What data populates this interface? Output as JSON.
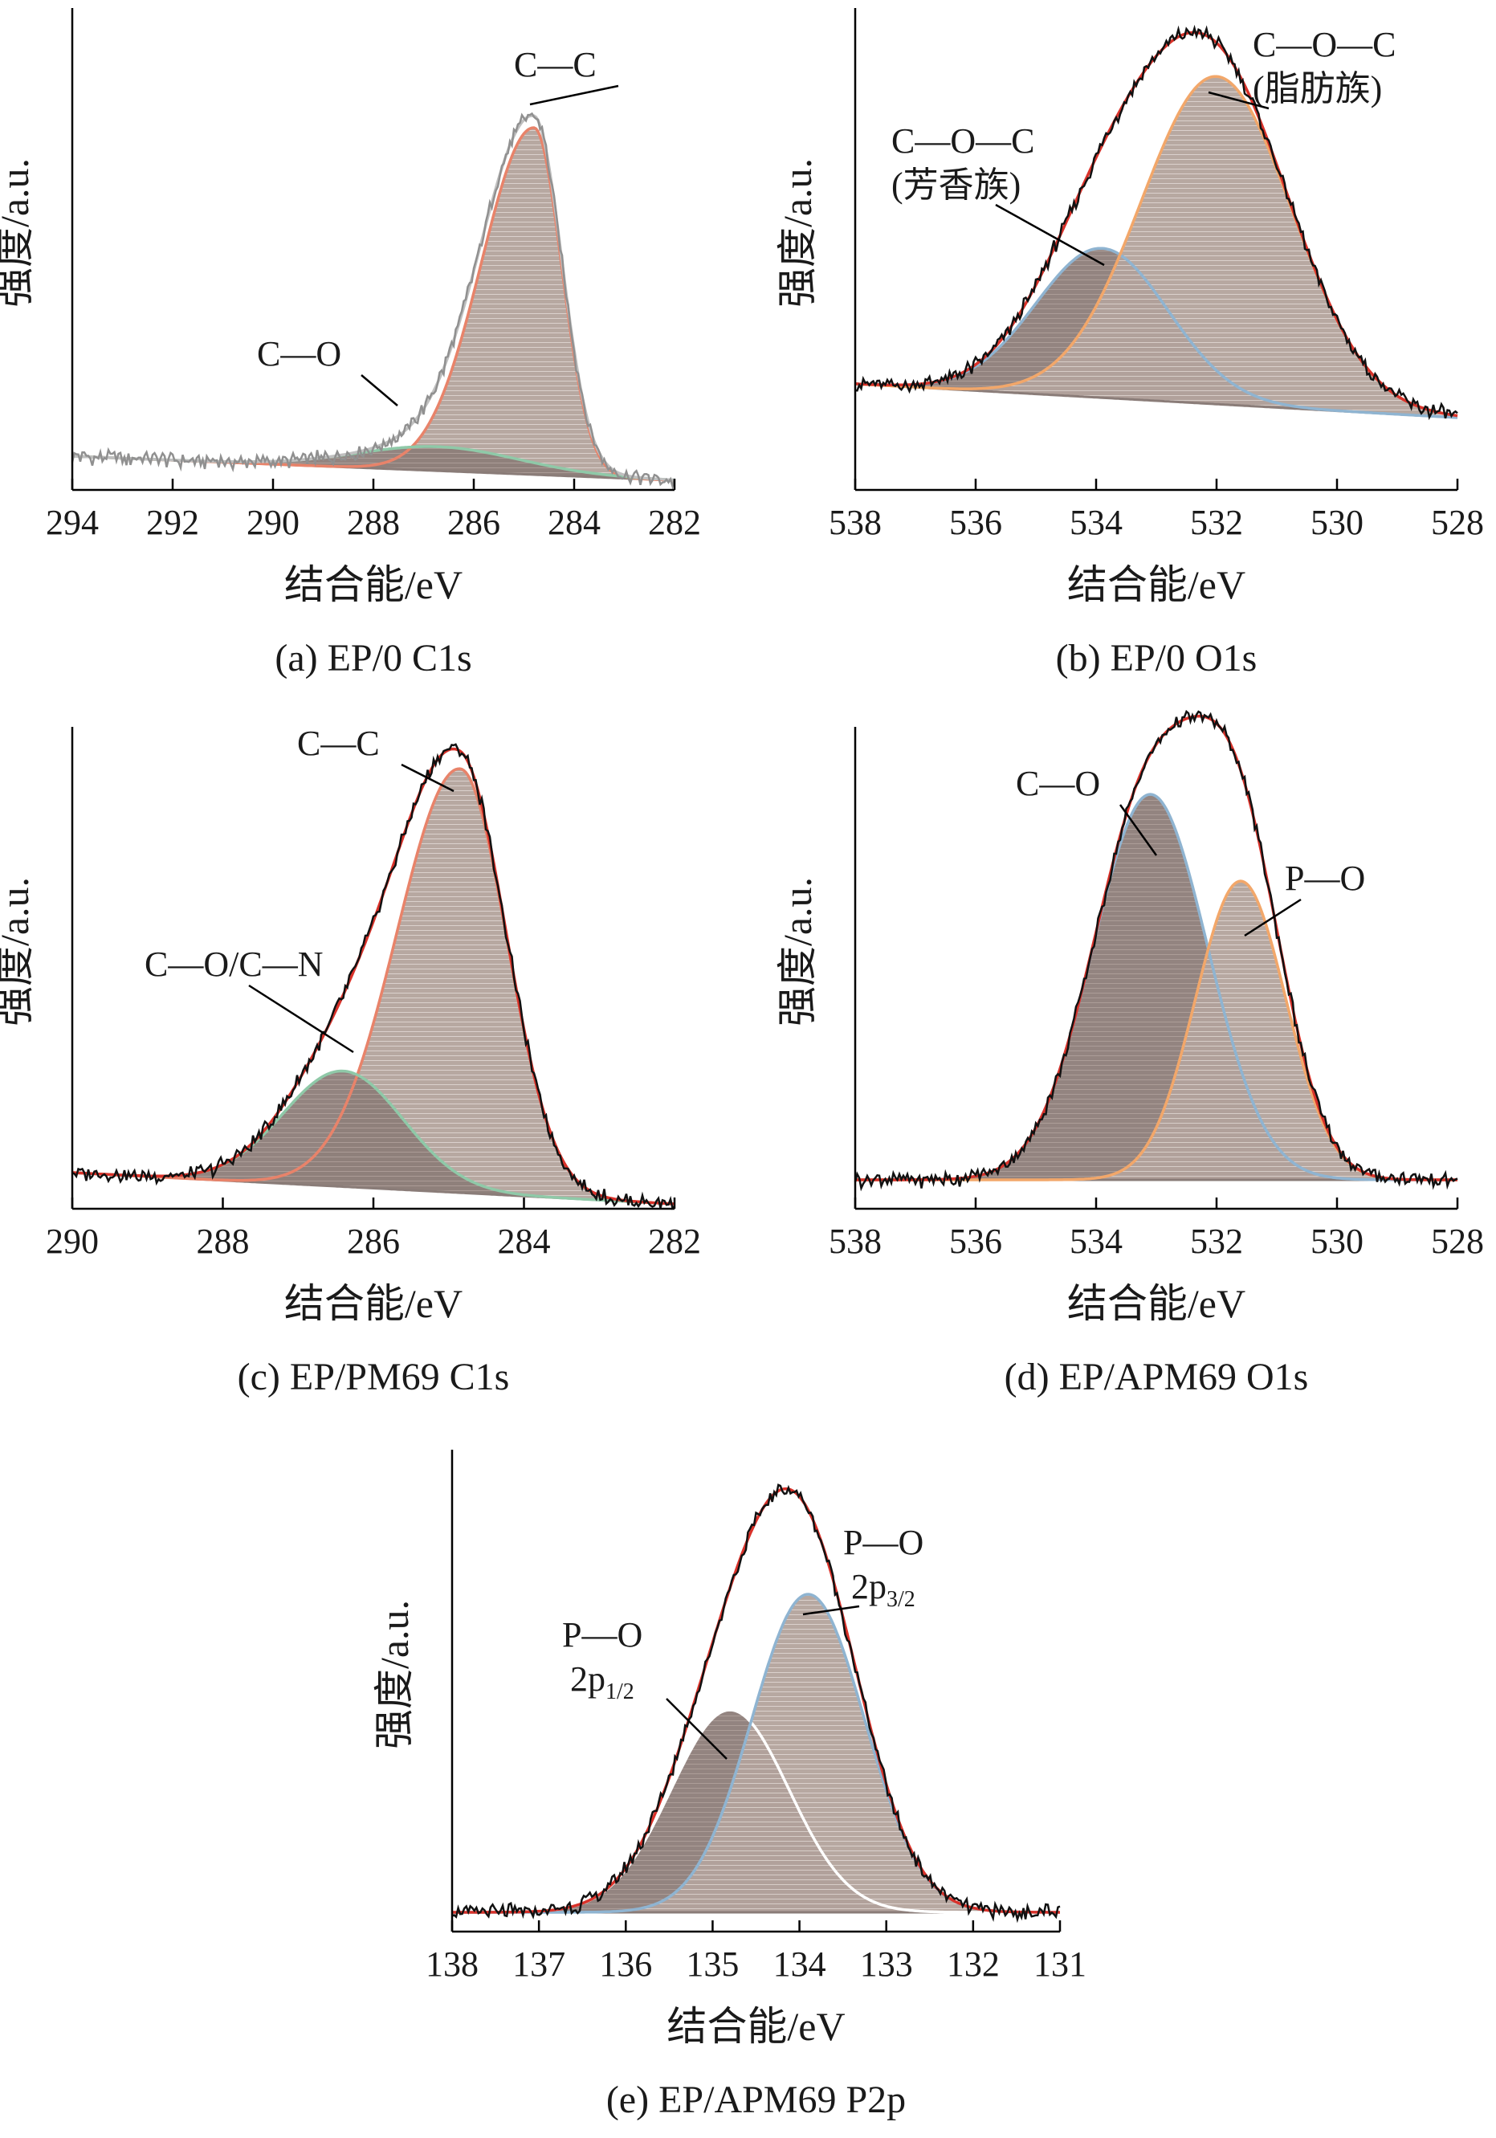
{
  "chart_data": [
    {
      "id": "a",
      "type": "area",
      "caption": "(a) EP/0 C1s",
      "xlabel": "结合能/eV",
      "ylabel": "强度/a.u.",
      "xlim": [
        294,
        282
      ],
      "xticks": [
        294,
        292,
        290,
        288,
        286,
        284,
        282
      ],
      "ylim": [
        0,
        1
      ],
      "baseline": [
        0.07,
        0.02
      ],
      "peaks": [
        {
          "center": 284.8,
          "height": 0.72,
          "width": 0.55,
          "color": "#e8836a"
        },
        {
          "center": 286.7,
          "height": 0.05,
          "width": 1.6,
          "color": "#8fc9a8"
        }
      ],
      "measured_color": "#909090",
      "envelope_color": "#c0c0c0",
      "annotations": [
        {
          "label": "C—C",
          "x": 284.85,
          "y": 0.78
        },
        {
          "label": "C—O",
          "x": 287.3,
          "y": 0.11
        }
      ]
    },
    {
      "id": "b",
      "type": "area",
      "caption": "(b) EP/0 O1s",
      "xlabel": "结合能/eV",
      "ylabel": "强度/a.u.",
      "xlim": [
        538,
        528
      ],
      "xticks": [
        538,
        536,
        534,
        532,
        530,
        528
      ],
      "ylim": [
        0,
        1
      ],
      "baseline": [
        0.22,
        0.15
      ],
      "peaks": [
        {
          "center": 533.9,
          "height": 0.31,
          "width": 1.1,
          "color": "#8fb4d1"
        },
        {
          "center": 532.0,
          "height": 0.68,
          "width": 1.25,
          "color": "#f2a76a"
        }
      ],
      "measured_color": "#111111",
      "envelope_color": "#d9322a",
      "annotations": [
        {
          "label": "C—O—C",
          "sub": "(芳香族)",
          "x": 533.9,
          "y": 0.54
        },
        {
          "label": "C—O—C",
          "sub": "(脂肪族)",
          "x": 532.2,
          "y": 0.84
        }
      ]
    },
    {
      "id": "c",
      "type": "area",
      "caption": "(c) EP/PM69 C1s",
      "xlabel": "结合能/eV",
      "ylabel": "强度/a.u.",
      "xlim": [
        290,
        282
      ],
      "xticks": [
        290,
        288,
        286,
        284,
        282
      ],
      "ylim": [
        0,
        1
      ],
      "baseline": [
        0.075,
        0.01
      ],
      "peaks": [
        {
          "center": 284.85,
          "height": 0.88,
          "width": 0.62,
          "color": "#e8836a"
        },
        {
          "center": 286.4,
          "height": 0.24,
          "width": 0.8,
          "color": "#8fc9a8"
        }
      ],
      "measured_color": "#111111",
      "envelope_color": "#d9322a",
      "annotations": [
        {
          "label": "C—C",
          "x": 284.8,
          "y": 0.95
        },
        {
          "label": "C—O/C—N",
          "x": 286.3,
          "y": 0.33
        }
      ]
    },
    {
      "id": "d",
      "type": "area",
      "caption": "(d) EP/APM69 O1s",
      "xlabel": "结合能/eV",
      "ylabel": "强度/a.u.",
      "xlim": [
        538,
        528
      ],
      "xticks": [
        538,
        536,
        534,
        532,
        530,
        528
      ],
      "ylim": [
        0,
        1
      ],
      "baseline": [
        0.06,
        0.06
      ],
      "peaks": [
        {
          "center": 533.1,
          "height": 0.8,
          "width": 0.95,
          "color": "#8fb4d1"
        },
        {
          "center": 531.6,
          "height": 0.62,
          "width": 0.75,
          "color": "#f2a76a"
        }
      ],
      "measured_color": "#111111",
      "envelope_color": "#d9322a",
      "annotations": [
        {
          "label": "C—O",
          "x": 533.1,
          "y": 0.9
        },
        {
          "label": "P—O",
          "x": 531.6,
          "y": 0.72
        }
      ]
    },
    {
      "id": "e",
      "type": "area",
      "caption": "(e) EP/APM69 P2p",
      "xlabel": "结合能/eV",
      "ylabel": "强度/a.u.",
      "xlim": [
        138,
        131
      ],
      "xticks": [
        138,
        137,
        136,
        135,
        134,
        133,
        132,
        131
      ],
      "ylim": [
        0,
        1
      ],
      "baseline": [
        0.04,
        0.04
      ],
      "peaks": [
        {
          "center": 134.8,
          "height": 0.42,
          "width": 0.68,
          "color": "#ffffff"
        },
        {
          "center": 133.9,
          "height": 0.66,
          "width": 0.65,
          "color": "#8fb4d1"
        }
      ],
      "measured_color": "#111111",
      "envelope_color": "#d9322a",
      "annotations": [
        {
          "label": "P—O",
          "sub": "2p",
          "subsub": "1/2",
          "x": 134.8,
          "y": 0.47
        },
        {
          "label": "P—O",
          "sub": "2p",
          "subsub": "3/2",
          "x": 133.9,
          "y": 0.72
        }
      ]
    }
  ]
}
